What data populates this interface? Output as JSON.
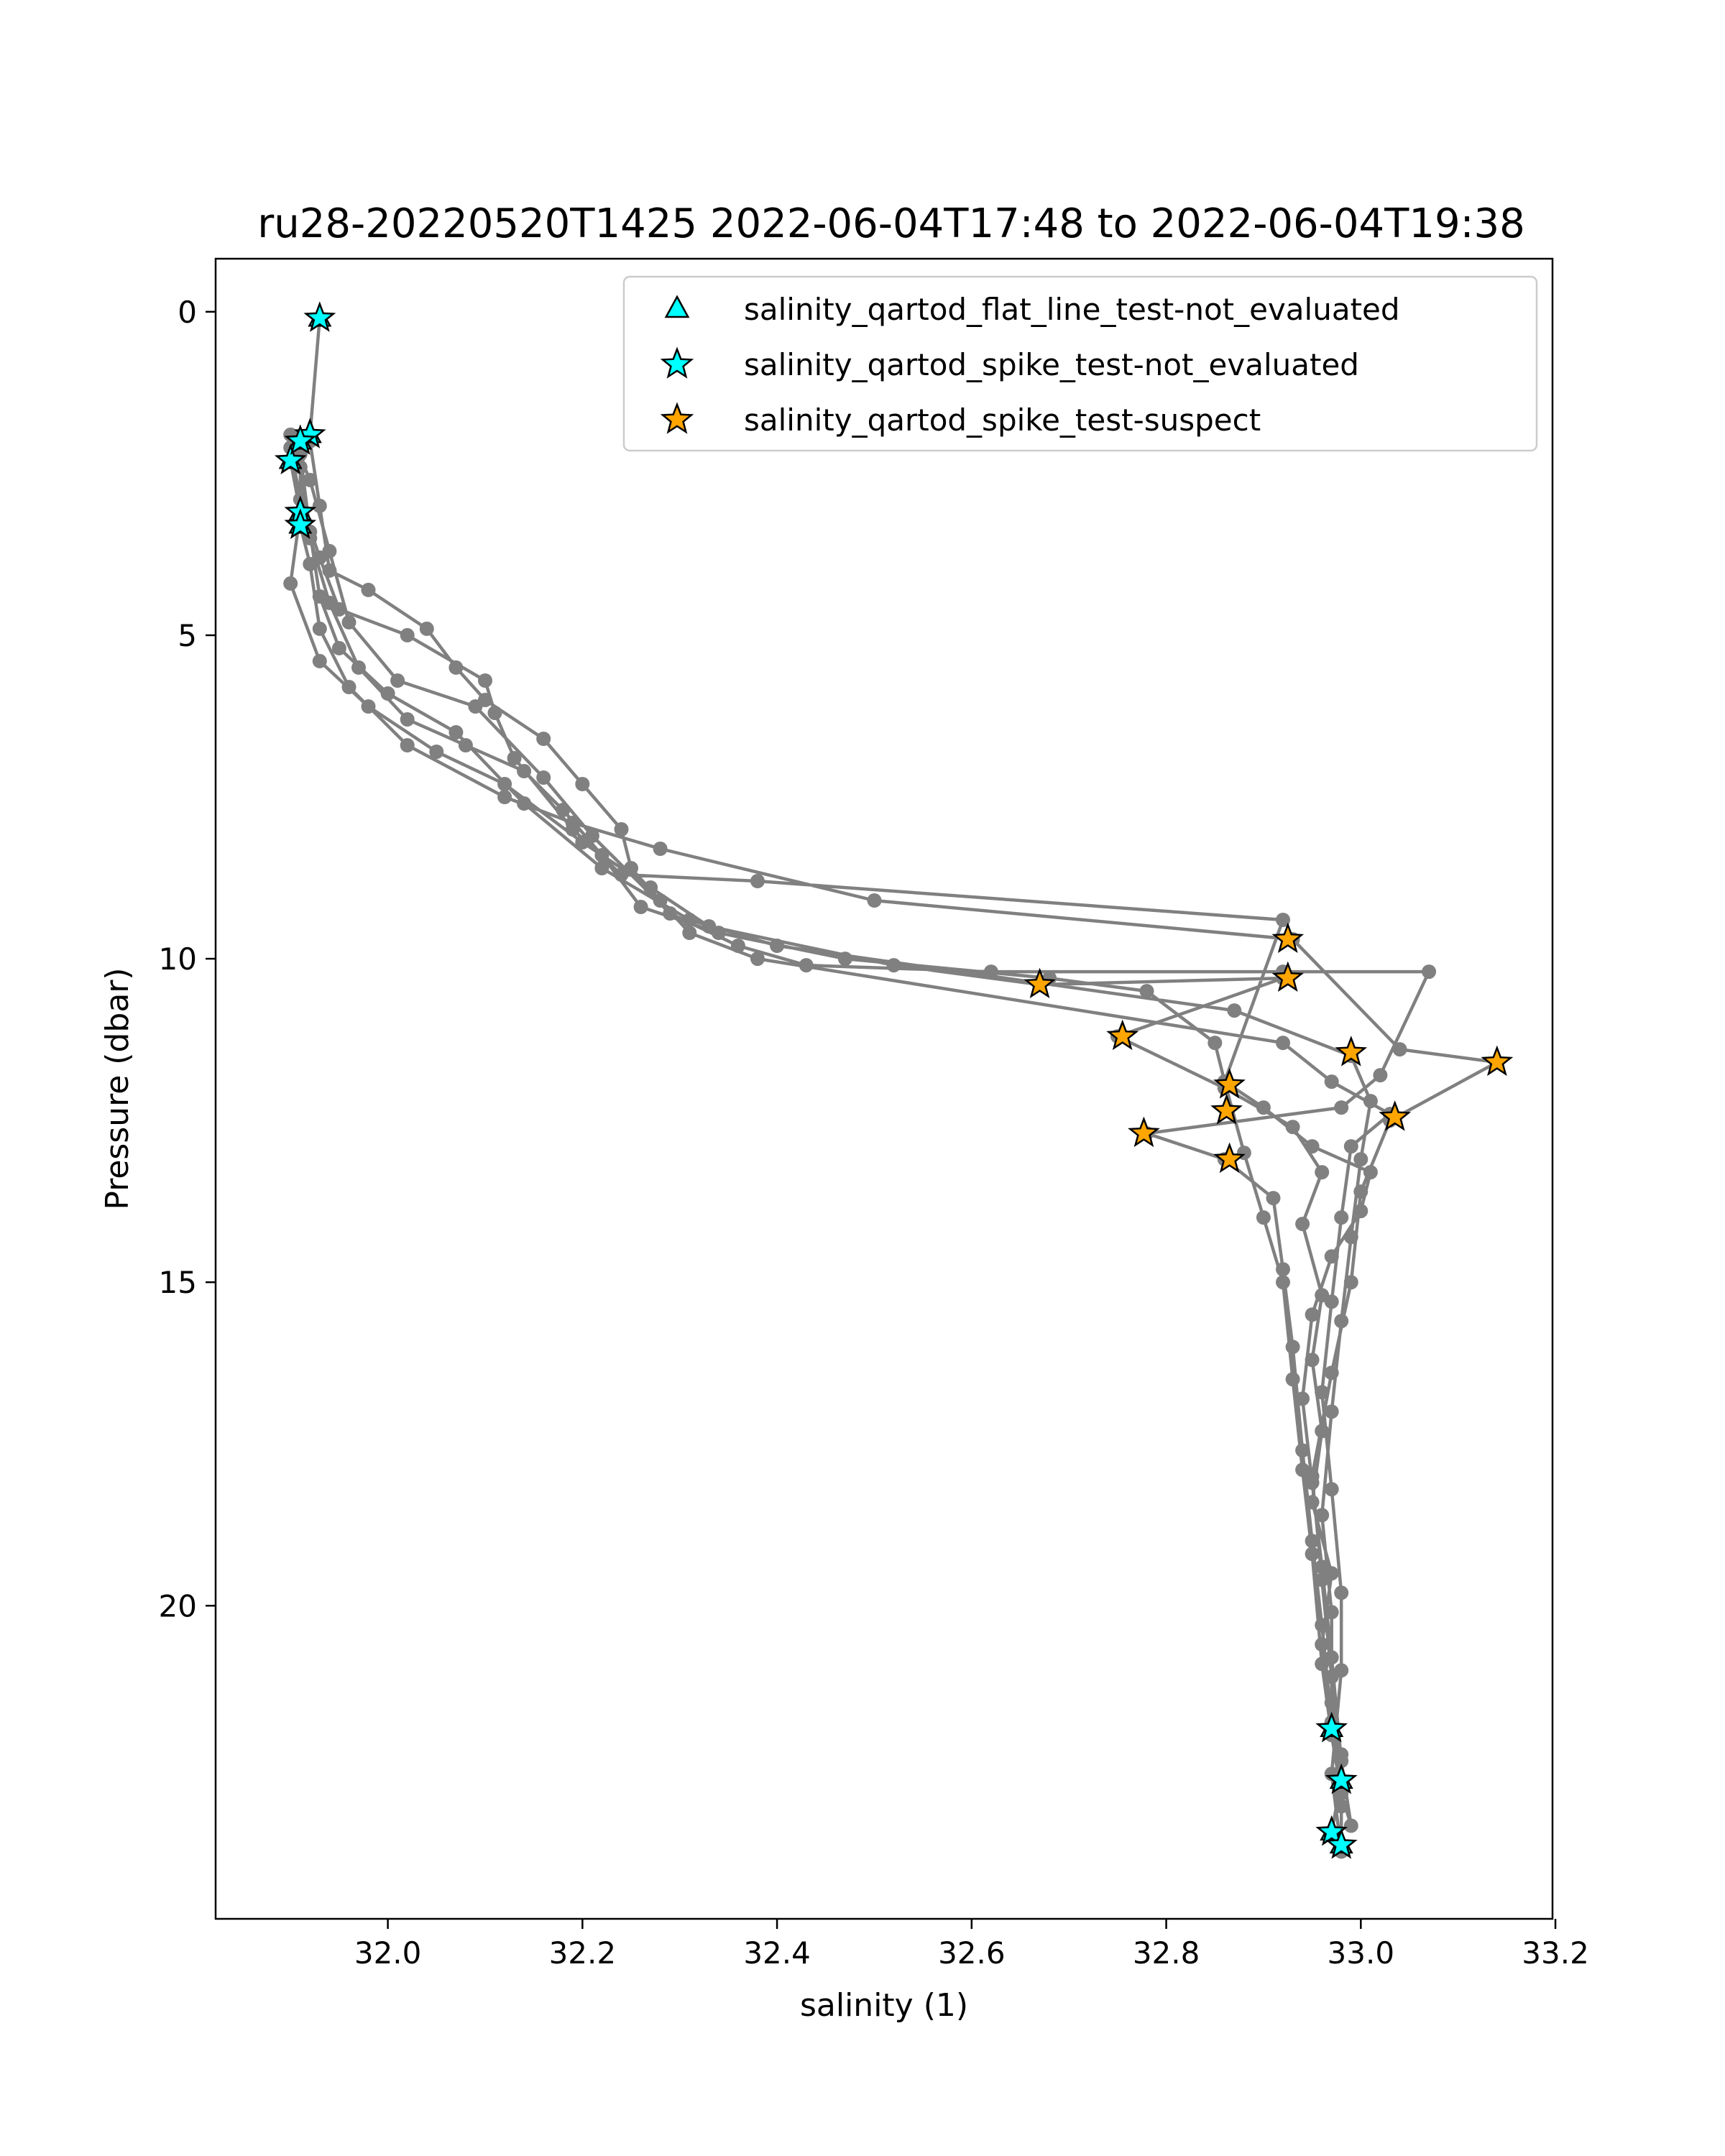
{
  "chart_data": {
    "type": "scatter",
    "title": "ru28-20220520T1425 2022-06-04T17:48 to 2022-06-04T19:38",
    "xlabel": "salinity (1)",
    "ylabel": "Pressure (dbar)",
    "xlim": [
      31.823,
      33.197
    ],
    "ylim": [
      24.84,
      -0.82
    ],
    "y_inverted": true,
    "grid": false,
    "legend_position": "top-right",
    "x_ticks": [
      {
        "value": 32.0,
        "label": "32.0"
      },
      {
        "value": 32.2,
        "label": "32.2"
      },
      {
        "value": 32.4,
        "label": "32.4"
      },
      {
        "value": 32.6,
        "label": "32.6"
      },
      {
        "value": 32.8,
        "label": "32.8"
      },
      {
        "value": 33.0,
        "label": "33.0"
      },
      {
        "value": 33.2,
        "label": "33.2"
      }
    ],
    "y_ticks": [
      {
        "value": 0,
        "label": "0"
      },
      {
        "value": 5,
        "label": "5"
      },
      {
        "value": 10,
        "label": "10"
      },
      {
        "value": 15,
        "label": "15"
      },
      {
        "value": 20,
        "label": "20"
      }
    ],
    "profile": {
      "color": "#808080",
      "points": [
        [
          31.93,
          0.1
        ],
        [
          31.92,
          1.9
        ],
        [
          31.9,
          2.3
        ],
        [
          31.91,
          3.1
        ],
        [
          31.9,
          4.2
        ],
        [
          31.93,
          5.4
        ],
        [
          31.98,
          6.1
        ],
        [
          32.05,
          6.8
        ],
        [
          32.12,
          7.3
        ],
        [
          32.2,
          8.2
        ],
        [
          32.27,
          8.9
        ],
        [
          32.33,
          9.5
        ],
        [
          32.52,
          10.1
        ],
        [
          32.67,
          10.4
        ],
        [
          32.92,
          10.3
        ],
        [
          32.75,
          11.2
        ],
        [
          32.86,
          12.0
        ],
        [
          32.93,
          12.6
        ],
        [
          32.96,
          13.3
        ],
        [
          32.94,
          14.1
        ],
        [
          32.96,
          15.2
        ],
        [
          32.95,
          16.2
        ],
        [
          32.96,
          17.3
        ],
        [
          32.95,
          18.4
        ],
        [
          32.97,
          19.5
        ],
        [
          32.96,
          20.6
        ],
        [
          32.97,
          21.9
        ],
        [
          32.98,
          22.7
        ],
        [
          32.97,
          23.5
        ],
        [
          32.98,
          23.7
        ],
        [
          32.98,
          22.8
        ],
        [
          32.97,
          21.1
        ],
        [
          32.96,
          19.6
        ],
        [
          32.95,
          18.0
        ],
        [
          32.97,
          16.4
        ],
        [
          32.99,
          15.0
        ],
        [
          33.0,
          13.6
        ],
        [
          33.03,
          12.5
        ],
        [
          33.14,
          11.6
        ],
        [
          33.04,
          11.4
        ],
        [
          32.93,
          9.7
        ],
        [
          32.5,
          9.1
        ],
        [
          32.28,
          8.3
        ],
        [
          32.19,
          7.9
        ],
        [
          32.12,
          7.5
        ],
        [
          32.02,
          6.7
        ],
        [
          31.96,
          5.8
        ],
        [
          31.93,
          4.9
        ],
        [
          31.92,
          3.9
        ],
        [
          31.91,
          3.3
        ],
        [
          31.91,
          2.0
        ],
        [
          31.91,
          2.2
        ],
        [
          31.92,
          3.4
        ],
        [
          31.93,
          4.4
        ],
        [
          31.95,
          5.2
        ],
        [
          32.0,
          5.9
        ],
        [
          32.07,
          6.5
        ],
        [
          32.14,
          7.6
        ],
        [
          32.22,
          8.6
        ],
        [
          32.31,
          9.4
        ],
        [
          32.4,
          9.8
        ],
        [
          32.87,
          10.8
        ],
        [
          32.99,
          11.5
        ],
        [
          33.01,
          12.2
        ],
        [
          33.0,
          13.1
        ],
        [
          32.99,
          14.3
        ],
        [
          32.98,
          15.6
        ],
        [
          32.97,
          17.0
        ],
        [
          32.96,
          18.6
        ],
        [
          32.97,
          20.1
        ],
        [
          32.97,
          21.5
        ],
        [
          32.98,
          22.3
        ],
        [
          32.98,
          23.1
        ],
        [
          32.97,
          21.8
        ],
        [
          32.96,
          20.3
        ],
        [
          32.95,
          19.0
        ],
        [
          32.94,
          17.6
        ],
        [
          32.93,
          16.0
        ],
        [
          32.92,
          14.8
        ],
        [
          32.91,
          13.7
        ],
        [
          32.86,
          13.1
        ],
        [
          32.78,
          12.7
        ],
        [
          32.98,
          12.3
        ],
        [
          33.02,
          11.8
        ],
        [
          33.07,
          10.2
        ],
        [
          32.92,
          10.2
        ],
        [
          32.62,
          10.2
        ],
        [
          32.43,
          10.1
        ],
        [
          32.36,
          9.8
        ],
        [
          32.29,
          9.3
        ],
        [
          32.21,
          8.1
        ],
        [
          32.16,
          7.2
        ],
        [
          32.09,
          6.1
        ],
        [
          32.01,
          5.7
        ],
        [
          31.96,
          4.8
        ],
        [
          31.94,
          3.7
        ],
        [
          31.92,
          2.6
        ],
        [
          31.9,
          1.9
        ],
        [
          31.9,
          2.1
        ],
        [
          31.91,
          2.9
        ],
        [
          31.93,
          3.8
        ],
        [
          31.95,
          4.6
        ],
        [
          32.02,
          5.0
        ],
        [
          32.1,
          5.7
        ],
        [
          32.11,
          6.2
        ],
        [
          32.13,
          6.9
        ],
        [
          32.19,
          8.0
        ],
        [
          32.24,
          8.7
        ],
        [
          32.38,
          8.8
        ],
        [
          32.92,
          9.4
        ],
        [
          32.86,
          11.9
        ],
        [
          32.88,
          13.0
        ],
        [
          32.9,
          14.0
        ],
        [
          32.92,
          15.0
        ],
        [
          32.93,
          16.5
        ],
        [
          32.94,
          17.9
        ],
        [
          32.95,
          19.2
        ],
        [
          32.96,
          20.9
        ],
        [
          32.97,
          22.0
        ],
        [
          32.98,
          22.9
        ],
        [
          32.99,
          23.4
        ],
        [
          32.98,
          22.4
        ],
        [
          32.97,
          20.8
        ],
        [
          32.96,
          19.4
        ],
        [
          32.95,
          18.1
        ],
        [
          32.94,
          16.8
        ],
        [
          32.95,
          15.5
        ],
        [
          32.97,
          14.6
        ],
        [
          33.0,
          13.9
        ],
        [
          33.01,
          13.3
        ],
        [
          32.95,
          12.9
        ],
        [
          32.9,
          12.3
        ],
        [
          32.86,
          11.9
        ],
        [
          32.85,
          11.3
        ],
        [
          32.78,
          10.5
        ],
        [
          32.68,
          10.3
        ],
        [
          32.47,
          10.0
        ],
        [
          32.34,
          9.6
        ],
        [
          32.26,
          9.2
        ],
        [
          32.22,
          8.4
        ],
        [
          32.18,
          7.7
        ],
        [
          32.14,
          7.1
        ],
        [
          32.08,
          6.7
        ],
        [
          32.02,
          6.3
        ],
        [
          31.97,
          5.5
        ],
        [
          31.94,
          4.5
        ],
        [
          31.92,
          3.5
        ],
        [
          31.91,
          2.4
        ],
        [
          31.92,
          2.0
        ],
        [
          31.93,
          3.0
        ],
        [
          31.94,
          4.0
        ],
        [
          31.98,
          4.3
        ],
        [
          32.04,
          4.9
        ],
        [
          32.07,
          5.5
        ],
        [
          32.1,
          6.0
        ],
        [
          32.16,
          6.6
        ],
        [
          32.2,
          7.3
        ],
        [
          32.24,
          8.0
        ],
        [
          32.25,
          8.6
        ],
        [
          32.28,
          9.1
        ],
        [
          32.31,
          9.6
        ],
        [
          32.38,
          10.0
        ],
        [
          32.92,
          11.3
        ],
        [
          32.97,
          11.9
        ],
        [
          33.03,
          12.4
        ],
        [
          32.99,
          12.9
        ],
        [
          32.98,
          14.0
        ],
        [
          32.97,
          15.3
        ],
        [
          32.96,
          16.7
        ],
        [
          32.97,
          18.2
        ],
        [
          32.98,
          19.8
        ],
        [
          32.98,
          21.0
        ],
        [
          32.97,
          22.6
        ],
        [
          32.98,
          23.8
        ]
      ]
    },
    "series": [
      {
        "name": "salinity_qartod_flat_line_test-not_evaluated",
        "marker": "triangle",
        "color": "#00ffff",
        "points": [
          [
            31.93,
            0.1
          ],
          [
            31.92,
            1.9
          ],
          [
            31.9,
            2.3
          ],
          [
            31.91,
            3.1
          ],
          [
            31.91,
            3.3
          ],
          [
            31.91,
            2.0
          ],
          [
            32.97,
            21.9
          ],
          [
            32.98,
            22.7
          ],
          [
            32.97,
            23.5
          ],
          [
            32.98,
            23.7
          ]
        ]
      },
      {
        "name": "salinity_qartod_spike_test-not_evaluated",
        "marker": "star",
        "color": "#00ffff",
        "points": [
          [
            31.93,
            0.1
          ],
          [
            31.92,
            1.9
          ],
          [
            31.9,
            2.3
          ],
          [
            31.91,
            3.1
          ],
          [
            31.91,
            3.3
          ],
          [
            31.91,
            2.0
          ],
          [
            32.97,
            21.9
          ],
          [
            32.98,
            22.7
          ],
          [
            32.97,
            23.5
          ],
          [
            32.98,
            23.7
          ]
        ]
      },
      {
        "name": "salinity_qartod_spike_test-suspect",
        "marker": "star",
        "color": "#ffa500",
        "points": [
          [
            32.925,
            9.7
          ],
          [
            32.925,
            10.3
          ],
          [
            32.67,
            10.4
          ],
          [
            32.755,
            11.2
          ],
          [
            32.99,
            11.45
          ],
          [
            33.14,
            11.6
          ],
          [
            32.865,
            11.95
          ],
          [
            32.862,
            12.35
          ],
          [
            33.035,
            12.45
          ],
          [
            32.777,
            12.7
          ],
          [
            32.865,
            13.1
          ]
        ]
      }
    ]
  }
}
